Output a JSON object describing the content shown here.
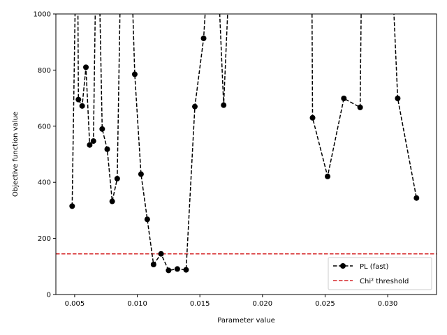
{
  "chart_data": {
    "type": "line",
    "title": "",
    "xlabel": "Parameter value",
    "ylabel": "Objective function value",
    "xlim": [
      0.0035,
      0.0339
    ],
    "ylim": [
      0,
      1000
    ],
    "xticks": [
      "0.005",
      "0.010",
      "0.015",
      "0.020",
      "0.025",
      "0.030"
    ],
    "xtick_values": [
      0.005,
      0.01,
      0.015,
      0.02,
      0.025,
      0.03
    ],
    "yticks": [
      "0",
      "200",
      "400",
      "600",
      "800",
      "1000"
    ],
    "ytick_values": [
      0,
      200,
      400,
      600,
      800,
      1000
    ],
    "grid": false,
    "legend_position": "lower-right",
    "series": [
      {
        "name": "PL (fast)",
        "color": "#000000",
        "line_style": "dashed",
        "marker": "circle",
        "x": [
          0.0048,
          0.0052,
          0.0053,
          0.0056,
          0.0059,
          0.0062,
          0.0065,
          0.0068,
          0.0072,
          0.0076,
          0.008,
          0.0084,
          0.0088,
          0.0093,
          0.0098,
          0.0103,
          0.0108,
          0.0113,
          0.0119,
          0.0125,
          0.0132,
          0.0139,
          0.0146,
          0.0153,
          0.0161,
          0.0169,
          0.0177,
          0.0239,
          0.024,
          0.0252,
          0.0265,
          0.0278,
          0.028,
          0.03,
          0.0308,
          0.0323
        ],
        "values": [
          315,
          1500,
          695,
          672,
          810,
          533,
          547,
          1500,
          590,
          518,
          332,
          413,
          1500,
          1500,
          785,
          429,
          268,
          107,
          145,
          86,
          91,
          88,
          670,
          913,
          1500,
          675,
          1500,
          1500,
          630,
          421,
          699,
          667,
          1500,
          1500,
          699,
          344
        ],
        "visible_markers": [
          true,
          false,
          true,
          true,
          true,
          true,
          true,
          false,
          true,
          true,
          true,
          true,
          false,
          false,
          true,
          true,
          true,
          true,
          true,
          true,
          true,
          true,
          true,
          true,
          false,
          true,
          false,
          false,
          true,
          true,
          true,
          true,
          false,
          false,
          true,
          true
        ]
      }
    ],
    "threshold": {
      "name": "Chi² threshold",
      "value": 145,
      "color": "#d62728",
      "line_style": "dashed"
    }
  }
}
